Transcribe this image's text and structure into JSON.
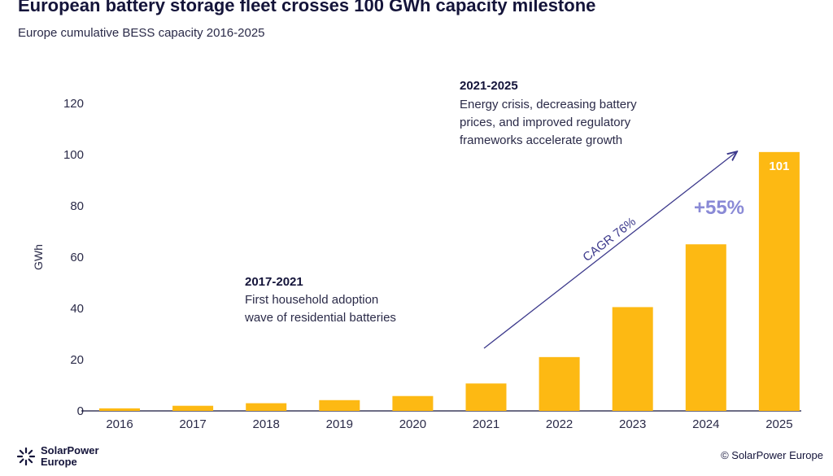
{
  "title": "European battery storage fleet crosses 100 GWh capacity milestone",
  "subtitle": "Europe cumulative BESS capacity 2016-2025",
  "logo": {
    "line1": "SolarPower",
    "line2": "Europe"
  },
  "copyright": "© SolarPower Europe",
  "colors": {
    "bar": "#FDB913",
    "arrow": "#3d3a8c",
    "growth": "#8a8ad6",
    "text": "#14143a"
  },
  "annotations": {
    "period1": {
      "title": "2017-2021",
      "lines": [
        "First household adoption",
        "wave of residential batteries"
      ]
    },
    "period2": {
      "title": "2021-2025",
      "lines": [
        "Energy crisis, decreasing battery",
        "prices, and improved regulatory",
        "frameworks accelerate growth"
      ]
    },
    "cagr": "CAGR 76%",
    "growth": "+55%"
  },
  "chart_data": {
    "type": "bar",
    "title": "European battery storage fleet crosses 100 GWh capacity milestone",
    "subtitle": "Europe cumulative BESS capacity 2016-2025",
    "xlabel": "",
    "ylabel": "GWh",
    "ylim": [
      0,
      120
    ],
    "yticks": [
      0,
      20,
      40,
      60,
      80,
      100,
      120
    ],
    "grid": false,
    "categories": [
      "2016",
      "2017",
      "2018",
      "2019",
      "2020",
      "2021",
      "2022",
      "2023",
      "2024",
      "2025"
    ],
    "values": [
      1,
      2,
      3,
      4.2,
      5.8,
      10.7,
      21,
      40.5,
      65,
      101
    ],
    "data_labels": {
      "2025": "101"
    }
  }
}
